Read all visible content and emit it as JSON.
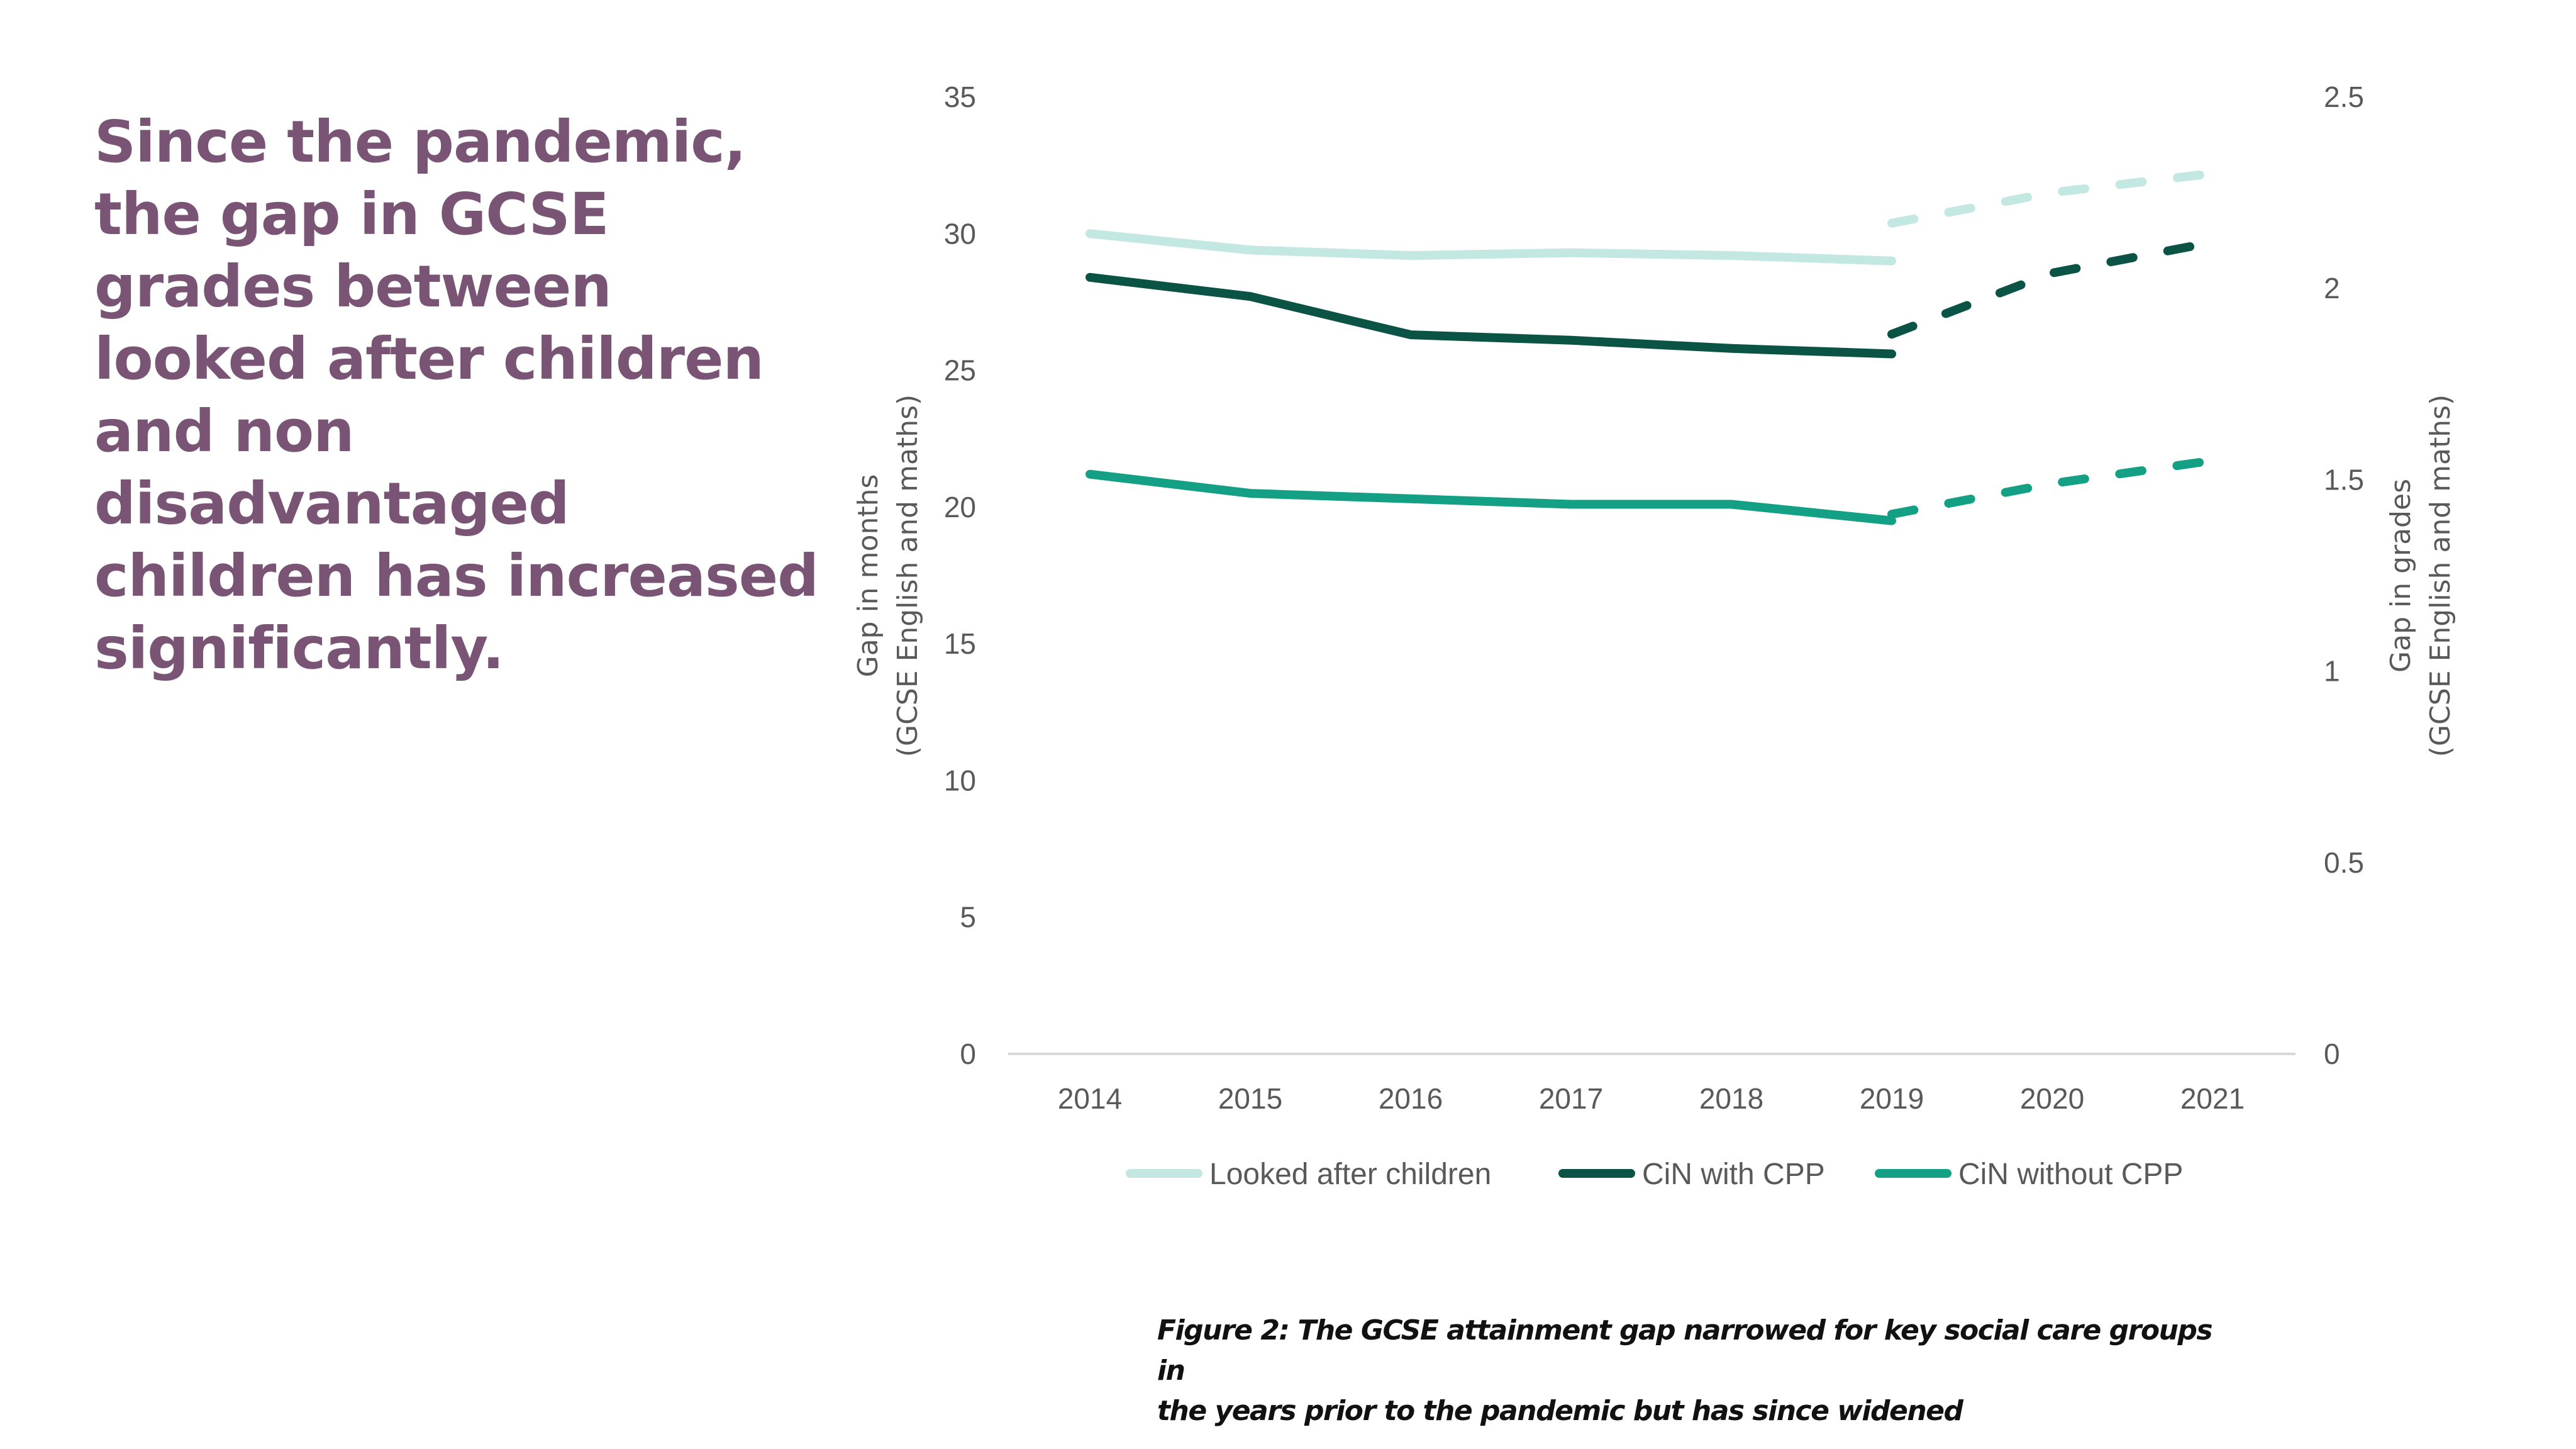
{
  "headline": {
    "lines": [
      "Since the pandemic,",
      "the gap in GCSE",
      "grades between",
      "looked after children",
      "and non",
      "disadvantaged",
      "children has increased",
      "significantly."
    ]
  },
  "caption": {
    "lines": [
      "Figure 2: The GCSE attainment gap narrowed for key social care groups in",
      "the years prior to the pandemic but has since widened"
    ]
  },
  "colors": {
    "headline": "#7a5474",
    "looked_after": "#c3e7e1",
    "cin_with_cpp": "#0b5345",
    "cin_without_cpp": "#13a084",
    "axis_line": "#d9d9d9",
    "tick_text": "#595959"
  },
  "chart_data": {
    "type": "line",
    "title": "",
    "categories": [
      "2014",
      "2015",
      "2016",
      "2017",
      "2018",
      "2019",
      "2020",
      "2021"
    ],
    "xlabel": "",
    "ylabel": "Gap in months (GCSE English and maths)",
    "ylabel_lines": [
      "Gap in months",
      "(GCSE English and maths)"
    ],
    "y2label": "Gap in grades (GCSE English and maths)",
    "y2label_lines": [
      "Gap in grades",
      "(GCSE English and maths)"
    ],
    "ylim": [
      0,
      35
    ],
    "yticks": [
      0,
      5,
      10,
      15,
      20,
      25,
      30,
      35
    ],
    "y2lim": [
      0,
      2.5
    ],
    "y2ticks": [
      "0",
      "0.5",
      "1",
      "1.5",
      "2",
      "2.5"
    ],
    "grid": false,
    "legend": "bottom",
    "series": [
      {
        "name": "Looked after children",
        "color_key": "looked_after",
        "axis": "months",
        "style": "solid",
        "x": [
          "2014",
          "2015",
          "2016",
          "2017",
          "2018",
          "2019"
        ],
        "values": [
          30.0,
          29.4,
          29.2,
          29.3,
          29.2,
          29.0
        ]
      },
      {
        "name": "CiN with CPP",
        "color_key": "cin_with_cpp",
        "axis": "months",
        "style": "solid",
        "x": [
          "2014",
          "2015",
          "2016",
          "2017",
          "2018",
          "2019"
        ],
        "values": [
          28.4,
          27.7,
          26.3,
          26.1,
          25.8,
          25.6
        ]
      },
      {
        "name": "CiN without CPP",
        "color_key": "cin_without_cpp",
        "axis": "months",
        "style": "solid",
        "x": [
          "2014",
          "2015",
          "2016",
          "2017",
          "2018",
          "2019"
        ],
        "values": [
          21.2,
          20.5,
          20.3,
          20.1,
          20.1,
          19.5
        ]
      },
      {
        "name": "Looked after children (grades)",
        "color_key": "looked_after",
        "axis": "grades",
        "style": "dashed",
        "x": [
          "2019",
          "2020",
          "2021"
        ],
        "values": [
          2.17,
          2.25,
          2.3
        ]
      },
      {
        "name": "CiN with CPP (grades)",
        "color_key": "cin_with_cpp",
        "axis": "grades",
        "style": "dashed",
        "x": [
          "2019",
          "2020",
          "2021"
        ],
        "values": [
          1.88,
          2.04,
          2.12
        ]
      },
      {
        "name": "CiN without CPP (grades)",
        "color_key": "cin_without_cpp",
        "axis": "grades",
        "style": "dashed",
        "x": [
          "2019",
          "2020",
          "2021"
        ],
        "values": [
          1.41,
          1.49,
          1.55
        ]
      }
    ],
    "legend_entries": [
      {
        "label": "Looked after children",
        "color_key": "looked_after"
      },
      {
        "label": "CiN with CPP",
        "color_key": "cin_with_cpp"
      },
      {
        "label": "CiN without CPP",
        "color_key": "cin_without_cpp"
      }
    ]
  }
}
